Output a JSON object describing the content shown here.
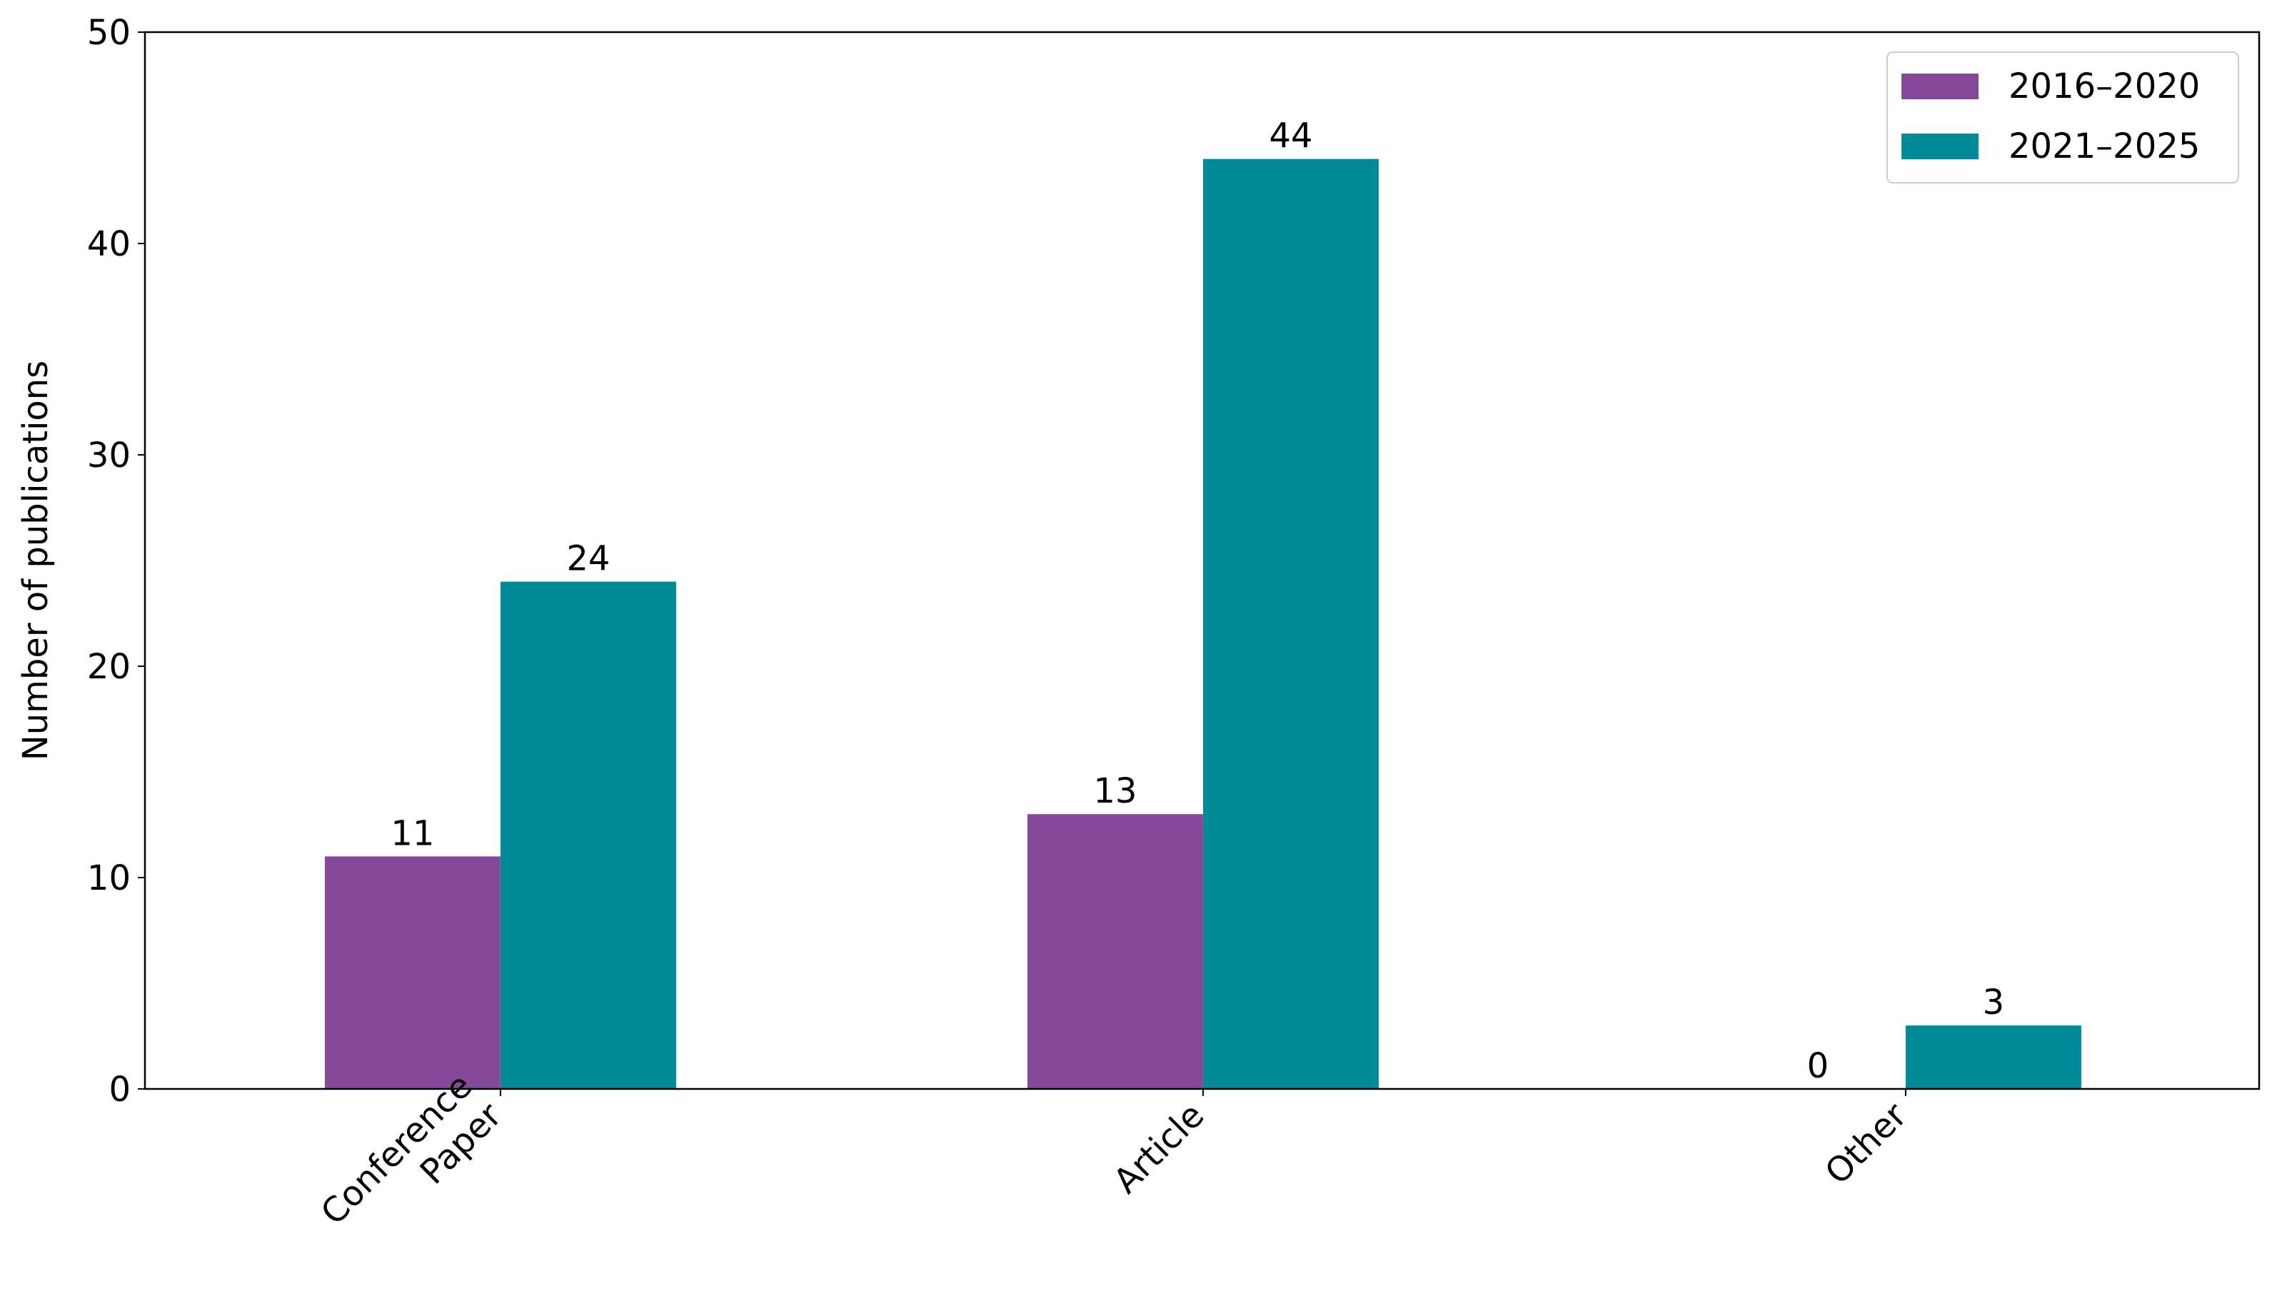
{
  "chart_data": {
    "type": "bar",
    "y_label": "Number of publications",
    "categories": [
      "Conference\nPaper",
      "Article",
      "Other"
    ],
    "series": [
      {
        "name": "2016–2020",
        "color": "#88489a",
        "values": [
          11,
          13,
          0
        ]
      },
      {
        "name": "2021–2025",
        "color": "#008b99",
        "values": [
          24,
          44,
          3
        ]
      }
    ],
    "ylim": [
      0,
      50
    ],
    "yticks": [
      0,
      10,
      20,
      30,
      40,
      50
    ],
    "legend": "upper right"
  }
}
